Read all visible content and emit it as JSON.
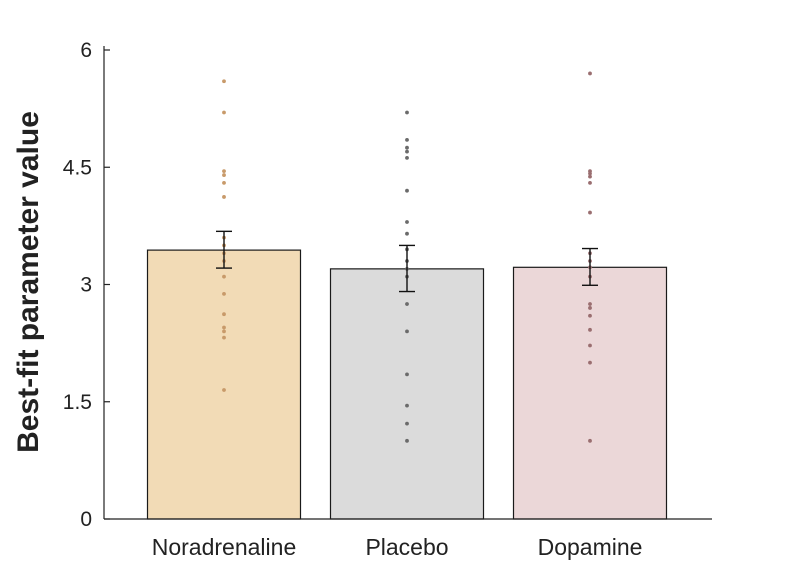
{
  "chart_data": {
    "type": "bar",
    "title": "",
    "xlabel": "",
    "ylabel": "Best-fit parameter value",
    "ylim": [
      0,
      6
    ],
    "yticks": [
      0,
      1.5,
      3,
      4.5,
      6
    ],
    "ytick_labels": [
      "0",
      "1.5",
      "3",
      "4.5",
      "6"
    ],
    "grid": false,
    "categories": [
      "Noradrenaline",
      "Placebo",
      "Dopamine"
    ],
    "values": [
      3.44,
      3.2,
      3.22
    ],
    "error_low": [
      3.21,
      2.91,
      2.99
    ],
    "error_high": [
      3.68,
      3.5,
      3.46
    ],
    "bar_colors": [
      "#f2dbb6",
      "#dbdbdb",
      "#ebd7d8"
    ],
    "point_colors": [
      "#c89a6a",
      "#6b6b6b",
      "#9a6e70"
    ],
    "points": [
      [
        5.6,
        5.2,
        4.45,
        4.4,
        4.3,
        4.12,
        3.6,
        3.5,
        3.4,
        3.3,
        3.1,
        2.88,
        2.62,
        2.45,
        2.4,
        2.32,
        1.65
      ],
      [
        5.2,
        4.85,
        4.75,
        4.7,
        4.62,
        4.2,
        3.8,
        3.65,
        3.45,
        3.3,
        3.2,
        3.1,
        2.75,
        2.4,
        1.85,
        1.45,
        1.22,
        1.0
      ],
      [
        5.7,
        4.45,
        4.42,
        4.38,
        4.3,
        3.92,
        3.4,
        3.3,
        3.22,
        3.1,
        2.75,
        2.7,
        2.6,
        2.42,
        2.22,
        2.0,
        1.0
      ]
    ]
  }
}
